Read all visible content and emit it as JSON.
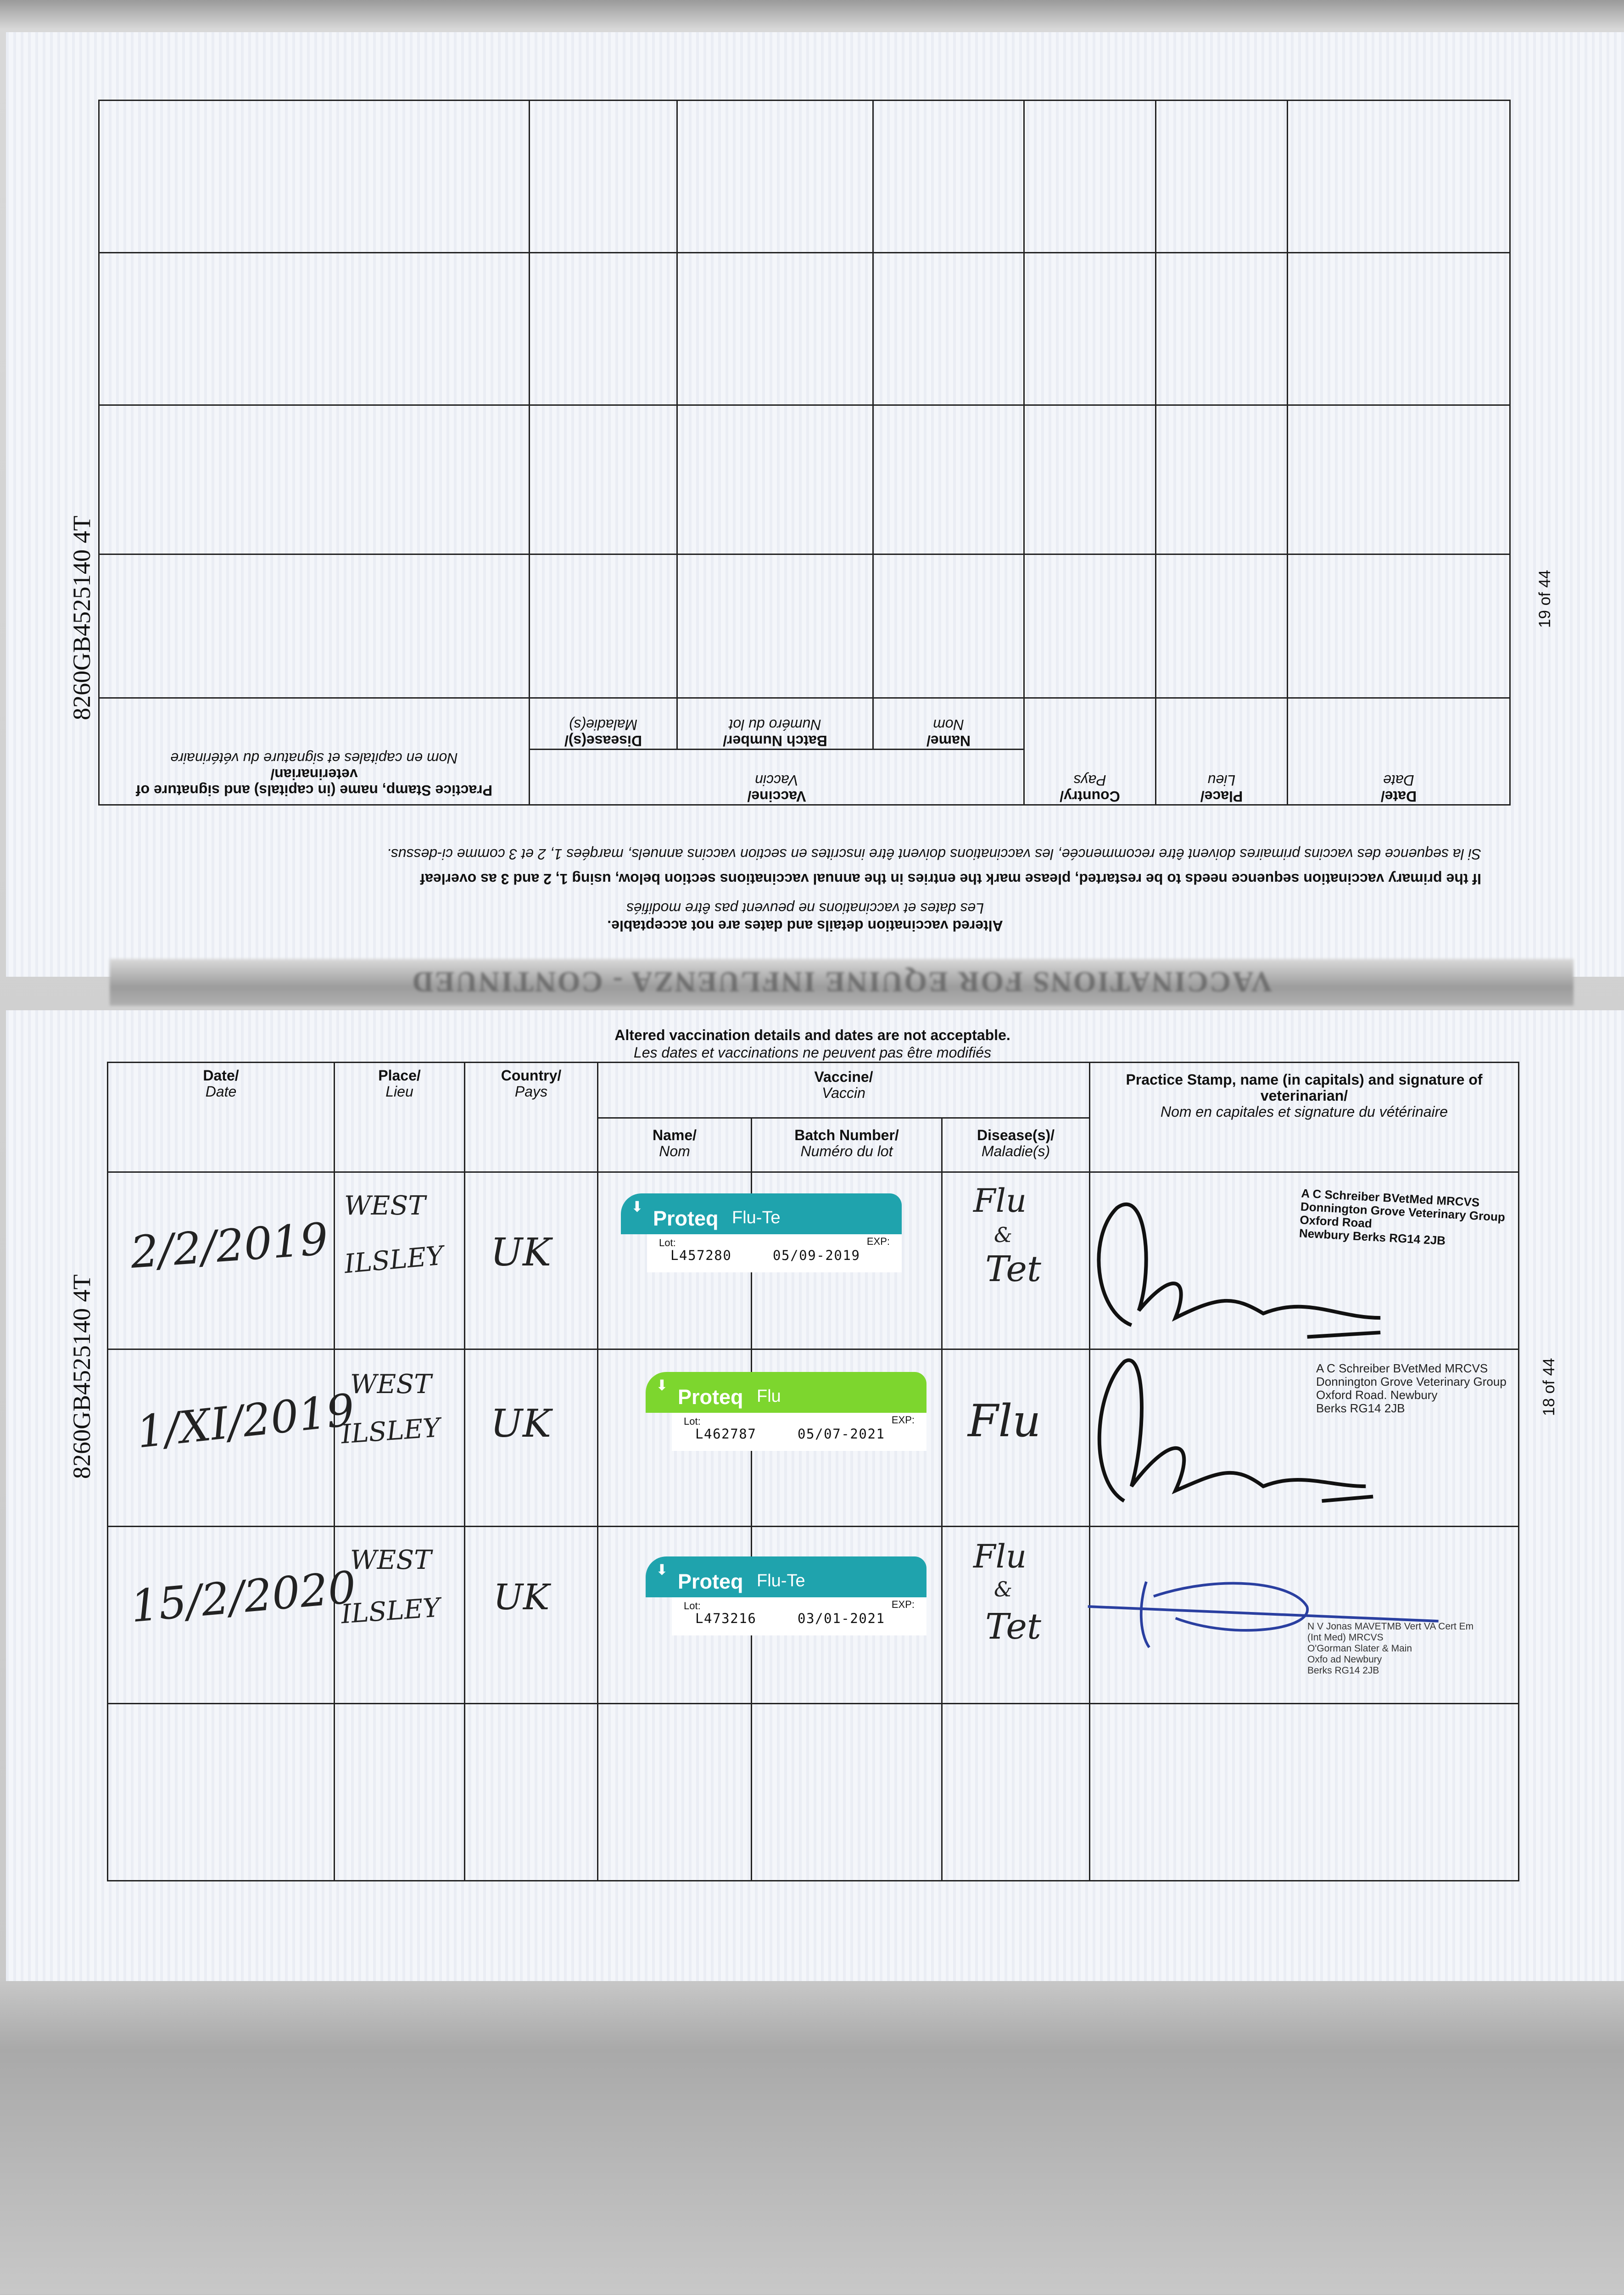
{
  "passport_number": "8260GB4525140 4T",
  "section_title": "VACCINATIONS FOR EQUINE INFLUENZA - CONTINUED",
  "top_page": {
    "page_number": "19 of 44",
    "notice_en": "Altered vaccination details and dates are not acceptable.",
    "notice_fr": "Les dates et vaccinations ne peuvent pas être modifiés",
    "instruction_en": "If the primary vaccination sequence needs to be restarted, please mark the entries in the annual vaccinations section below, using 1, 2 and 3 as overleaf",
    "instruction_fr": "Si la sequence des vaccins primaires doivent être recommencée, les vaccinations doivent être inscrites en section vaccins annuels, marqées 1, 2 et 3 comme ci-dessus."
  },
  "bottom_page": {
    "page_number": "18 of 44",
    "notice_en": "Altered vaccination details and dates are not acceptable.",
    "notice_fr": "Les dates et vaccinations ne peuvent pas être modifiés"
  },
  "headers": {
    "date_en": "Date/",
    "date_fr": "Date",
    "place_en": "Place/",
    "place_fr": "Lieu",
    "country_en": "Country/",
    "country_fr": "Pays",
    "vaccine_en": "Vaccine/",
    "vaccine_fr": "Vaccin",
    "name_en": "Name/",
    "name_fr": "Nom",
    "batch_en": "Batch Number/",
    "batch_fr": "Numéro du lot",
    "disease_en": "Disease(s)/",
    "disease_fr": "Maladie(s)",
    "stamp_en": "Practice Stamp, name (in capitals) and signature of veterinarian/",
    "stamp_fr": "Nom en capitales et signature du vétérinaire"
  },
  "sticker_labels": {
    "brand": "Proteq",
    "lot_label": "Lot:",
    "exp_label": "EXP:"
  },
  "colors": {
    "teal": "#1fa3ad",
    "green": "#7dd62e",
    "blue_ink": "#2a3fa0"
  },
  "entries": [
    {
      "date": "2/2/2019",
      "place_line1": "WEST",
      "place_line2": "ILSLEY",
      "country": "UK",
      "vaccine_product": "Flu-Te",
      "sticker_color": "teal",
      "lot": "L457280",
      "exp": "05/09-2019",
      "disease_line1": "Flu",
      "disease_line2": "&",
      "disease_line3": "Tet",
      "stamp": [
        "A C Schreiber BVetMed MRCVS",
        "Donnington Grove Veterinary Group",
        "Oxford Road",
        "Newbury Berks RG14 2JB"
      ]
    },
    {
      "date": "1/XI/2019",
      "place_line1": "WEST",
      "place_line2": "ILSLEY",
      "country": "UK",
      "vaccine_product": "Flu",
      "sticker_color": "green",
      "lot": "L462787",
      "exp": "05/07-2021",
      "disease_line1": "Flu",
      "disease_line2": "",
      "disease_line3": "",
      "stamp": [
        "A C Schreiber BVetMed MRCVS",
        "Donnington Grove Veterinary Group",
        "Oxford Road. Newbury",
        "Berks  RG14 2JB"
      ]
    },
    {
      "date": "15/2/2020",
      "place_line1": "WEST",
      "place_line2": "ILSLEY",
      "country": "UK",
      "vaccine_product": "Flu-Te",
      "sticker_color": "teal",
      "lot": "L473216",
      "exp": "03/01-2021",
      "disease_line1": "Flu",
      "disease_line2": "&",
      "disease_line3": "Tet",
      "stamp": [
        "N V Jonas MAVETMB Vert VA Cert Em",
        "(Int Med) MRCVS",
        "O'Gorman Slater & Main",
        "Oxfo    ad Newbury",
        "Berks RG14 2JB"
      ]
    }
  ]
}
